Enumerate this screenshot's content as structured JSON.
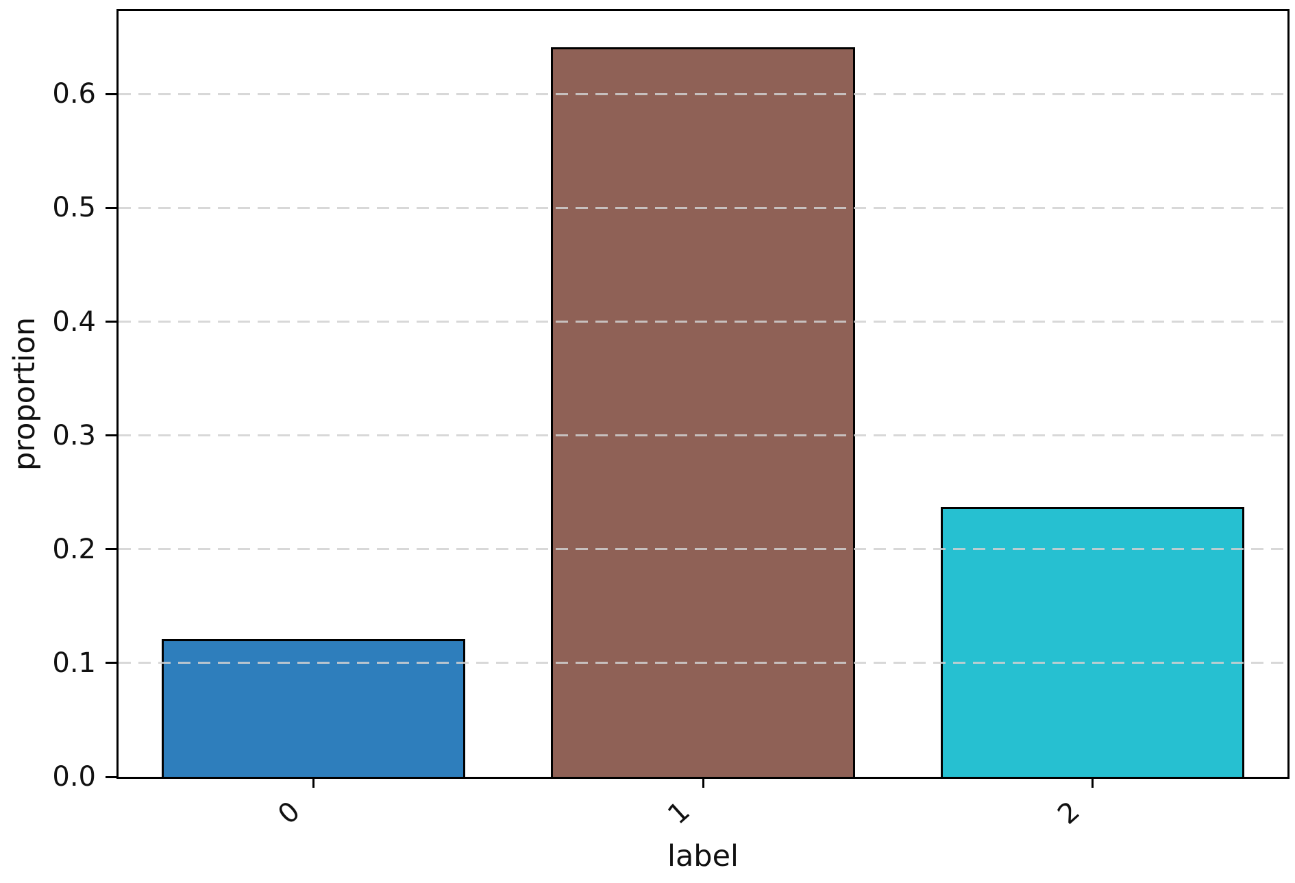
{
  "chart_data": {
    "type": "bar",
    "title": "",
    "xlabel": "label",
    "ylabel": "proportion",
    "categories": [
      "0",
      "1",
      "2"
    ],
    "values": [
      0.121,
      0.641,
      0.237
    ],
    "series_name": "proportion",
    "bar_colors": [
      "#2e7ebc",
      "#8f6156",
      "#26c0d1"
    ],
    "bar_edge_color": "#000000",
    "yticks": [
      0.0,
      0.1,
      0.2,
      0.3,
      0.4,
      0.5,
      0.6
    ],
    "ytick_labels": [
      "0.0",
      "0.1",
      "0.2",
      "0.3",
      "0.4",
      "0.5",
      "0.6"
    ],
    "ylim": [
      0,
      0.673
    ],
    "xtick_rotation_deg": 45,
    "grid": "horizontal-dashed",
    "grid_color": "#d1d1d1",
    "spine_color": "#000000",
    "background_color": "#ffffff",
    "legend_position": "none"
  }
}
